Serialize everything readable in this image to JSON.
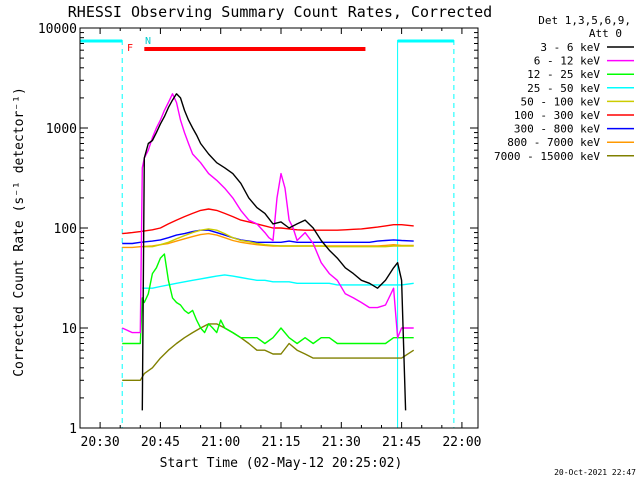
{
  "chart_data": {
    "type": "line",
    "title": "RHESSI Observing Summary Count Rates, Corrected",
    "xlabel": "Start Time (02-May-12 20:25:02)",
    "ylabel": "Corrected Count Rate (s⁻¹ detector⁻¹)",
    "x_range_minutes": [
      20.5,
      27.5
    ],
    "xlim_minutes": [
      0,
      99
    ],
    "ylim": [
      1,
      10000
    ],
    "yscale": "log",
    "x_ticks": [
      {
        "minute": 5,
        "label": "20:30"
      },
      {
        "minute": 20,
        "label": "20:45"
      },
      {
        "minute": 35,
        "label": "21:00"
      },
      {
        "minute": 50,
        "label": "21:15"
      },
      {
        "minute": 65,
        "label": "21:30"
      },
      {
        "minute": 80,
        "label": "21:45"
      },
      {
        "minute": 95,
        "label": "22:00"
      }
    ],
    "y_ticks": [
      {
        "value": 1,
        "label": "1"
      },
      {
        "value": 10,
        "label": "10"
      },
      {
        "value": 100,
        "label": "100"
      },
      {
        "value": 1000,
        "label": "1000"
      },
      {
        "value": 10000,
        "label": "10000"
      }
    ],
    "legend_header": [
      "Det 1,3,5,6,9,",
      "Att 0"
    ],
    "legend_position": "right",
    "series": [
      {
        "name": "3 - 6 keV",
        "color": "#000000",
        "x": [
          15.5,
          16,
          17,
          18,
          19,
          20,
          21,
          22,
          23,
          24,
          25,
          26,
          27,
          28,
          29,
          30,
          32,
          34,
          36,
          38,
          40,
          42,
          44,
          46,
          48,
          50,
          52,
          54,
          56,
          58,
          60,
          62,
          64,
          66,
          68,
          70,
          72,
          74,
          76,
          78,
          79,
          80,
          81
        ],
        "y": [
          1.5,
          500,
          700,
          750,
          900,
          1100,
          1300,
          1600,
          1900,
          2200,
          2000,
          1500,
          1200,
          1000,
          850,
          700,
          550,
          450,
          400,
          350,
          280,
          200,
          160,
          140,
          110,
          115,
          100,
          110,
          120,
          100,
          75,
          60,
          50,
          40,
          35,
          30,
          28,
          25,
          30,
          40,
          45,
          30,
          1.5
        ]
      },
      {
        "name": "6 - 12 keV",
        "color": "#ff00ff",
        "x": [
          10.5,
          13,
          15,
          15.5,
          16,
          17,
          18,
          19,
          20,
          21,
          22,
          23,
          24,
          25,
          26,
          27,
          28,
          30,
          32,
          34,
          36,
          38,
          40,
          42,
          44,
          46,
          47,
          48,
          49,
          50,
          51,
          52,
          53,
          54,
          56,
          58,
          60,
          62,
          64,
          66,
          68,
          70,
          72,
          74,
          76,
          78,
          79,
          80,
          81,
          83
        ],
        "y": [
          10,
          9,
          9,
          400,
          500,
          600,
          800,
          1000,
          1200,
          1500,
          1800,
          2200,
          1800,
          1200,
          900,
          700,
          550,
          450,
          350,
          300,
          250,
          200,
          150,
          120,
          110,
          90,
          80,
          75,
          200,
          350,
          250,
          120,
          100,
          75,
          90,
          70,
          45,
          35,
          30,
          22,
          20,
          18,
          16,
          16,
          17,
          25,
          8,
          10,
          10,
          10
        ]
      },
      {
        "name": "12 - 25 keV",
        "color": "#00ff00",
        "x": [
          10.5,
          13,
          15,
          15.5,
          16,
          17,
          18,
          19,
          20,
          21,
          22,
          23,
          24,
          25,
          26,
          27,
          28,
          29,
          30,
          31,
          32,
          33,
          34,
          35,
          36,
          38,
          40,
          42,
          44,
          46,
          48,
          50,
          52,
          54,
          56,
          58,
          60,
          62,
          64,
          66,
          68,
          70,
          72,
          74,
          76,
          78,
          80,
          83
        ],
        "y": [
          7,
          7,
          7,
          20,
          18,
          22,
          35,
          40,
          50,
          55,
          30,
          20,
          18,
          17,
          15,
          14,
          15,
          12,
          10,
          9,
          11,
          10,
          9,
          12,
          10,
          9,
          8,
          8,
          8,
          7,
          8,
          10,
          8,
          7,
          8,
          7,
          8,
          8,
          7,
          7,
          7,
          7,
          7,
          7,
          7,
          8,
          8,
          8
        ]
      },
      {
        "name": "25 - 50 keV",
        "color": "#00ffff",
        "x": [
          15.5,
          18,
          20,
          22,
          24,
          26,
          28,
          30,
          32,
          34,
          36,
          38,
          40,
          42,
          44,
          46,
          48,
          50,
          52,
          54,
          56,
          58,
          60,
          62,
          64,
          66,
          68,
          70,
          72,
          74,
          76,
          78,
          80,
          83
        ],
        "y": [
          25,
          25,
          26,
          27,
          28,
          29,
          30,
          31,
          32,
          33,
          34,
          33,
          32,
          31,
          30,
          30,
          29,
          29,
          29,
          28,
          28,
          28,
          28,
          28,
          27,
          27,
          27,
          27,
          27,
          27,
          27,
          27,
          27,
          28
        ]
      },
      {
        "name": "50 - 100 keV",
        "color": "#cccc00",
        "x": [
          15.5,
          18,
          20,
          22,
          24,
          26,
          28,
          30,
          32,
          34,
          36,
          38,
          40,
          42,
          44,
          46,
          48,
          50,
          52,
          54,
          56,
          58,
          60,
          62,
          64,
          66,
          68,
          70,
          72,
          74,
          76,
          78,
          80,
          83
        ],
        "y": [
          65,
          65,
          68,
          72,
          78,
          84,
          90,
          95,
          98,
          95,
          88,
          80,
          75,
          73,
          70,
          68,
          67,
          66,
          66,
          66,
          66,
          66,
          66,
          65,
          65,
          65,
          65,
          65,
          65,
          65,
          65,
          66,
          66,
          66
        ]
      },
      {
        "name": "100 - 300 keV",
        "color": "#ff0000",
        "x": [
          10.5,
          13,
          15,
          18,
          20,
          22,
          24,
          26,
          28,
          30,
          32,
          34,
          36,
          38,
          40,
          42,
          44,
          46,
          48,
          50,
          52,
          54,
          56,
          58,
          60,
          62,
          64,
          66,
          68,
          70,
          72,
          74,
          76,
          78,
          80,
          83
        ],
        "y": [
          88,
          90,
          92,
          96,
          100,
          110,
          120,
          130,
          140,
          150,
          155,
          150,
          140,
          130,
          120,
          115,
          110,
          105,
          100,
          100,
          98,
          96,
          95,
          95,
          95,
          95,
          95,
          96,
          97,
          98,
          100,
          102,
          105,
          108,
          108,
          105
        ]
      },
      {
        "name": "300 - 800 keV",
        "color": "#0000ff",
        "x": [
          10.5,
          13,
          15,
          18,
          20,
          22,
          24,
          26,
          28,
          30,
          32,
          34,
          36,
          38,
          40,
          42,
          44,
          46,
          48,
          50,
          52,
          54,
          56,
          58,
          60,
          62,
          64,
          66,
          68,
          70,
          72,
          74,
          76,
          78,
          80,
          83
        ],
        "y": [
          70,
          70,
          72,
          74,
          76,
          80,
          85,
          88,
          92,
          95,
          95,
          90,
          85,
          80,
          76,
          74,
          72,
          72,
          72,
          72,
          74,
          72,
          72,
          72,
          72,
          72,
          72,
          72,
          72,
          72,
          72,
          74,
          75,
          76,
          75,
          74
        ]
      },
      {
        "name": "800 - 7000 keV",
        "color": "#ff9900",
        "x": [
          10.5,
          13,
          15,
          18,
          20,
          22,
          24,
          26,
          28,
          30,
          32,
          34,
          36,
          38,
          40,
          42,
          44,
          46,
          48,
          50,
          52,
          54,
          56,
          58,
          60,
          62,
          64,
          66,
          68,
          70,
          72,
          74,
          76,
          78,
          80,
          83
        ],
        "y": [
          64,
          64,
          65,
          66,
          68,
          70,
          74,
          78,
          82,
          86,
          88,
          85,
          80,
          75,
          72,
          70,
          68,
          67,
          66,
          66,
          66,
          66,
          66,
          66,
          66,
          66,
          66,
          66,
          66,
          66,
          66,
          66,
          67,
          68,
          67,
          67
        ]
      },
      {
        "name": "7000 - 15000 keV",
        "color": "#808000",
        "x": [
          10.5,
          13,
          15,
          16,
          18,
          20,
          22,
          24,
          26,
          28,
          30,
          32,
          34,
          36,
          38,
          40,
          42,
          44,
          46,
          48,
          50,
          52,
          54,
          56,
          58,
          60,
          62,
          64,
          66,
          68,
          70,
          72,
          74,
          76,
          78,
          80,
          83
        ],
        "y": [
          3,
          3,
          3,
          3.5,
          4,
          5,
          6,
          7,
          8,
          9,
          10,
          11,
          11,
          10,
          9,
          8,
          7,
          6,
          6,
          5.5,
          5.5,
          7,
          6,
          5.5,
          5,
          5,
          5,
          5,
          5,
          5,
          5,
          5,
          5,
          5,
          5,
          5,
          6
        ]
      }
    ],
    "annotations": [
      {
        "text": "F",
        "color": "#ff0000"
      },
      {
        "text": "N",
        "color": "#00cccc"
      }
    ],
    "flag_bars": [
      {
        "name": "flare-flag",
        "color": "#ff0000",
        "x": [
          16,
          71
        ]
      },
      {
        "name": "night-flag-left",
        "color": "#00ffff",
        "x": [
          0,
          10.5
        ]
      },
      {
        "name": "night-flag-right",
        "color": "#00ffff",
        "x": [
          79,
          93
        ]
      }
    ],
    "vertical_markers": [
      {
        "x": 10.5,
        "color": "#00ffff",
        "style": "dashed"
      },
      {
        "x": 79,
        "color": "#00ffff",
        "style": "solid"
      },
      {
        "x": 93,
        "color": "#00ffff",
        "style": "dashed"
      },
      {
        "x": 0,
        "color": "#00ffff",
        "style": "solid"
      }
    ]
  },
  "footer": {
    "timestamp": "20-Oct-2021 22:47"
  }
}
